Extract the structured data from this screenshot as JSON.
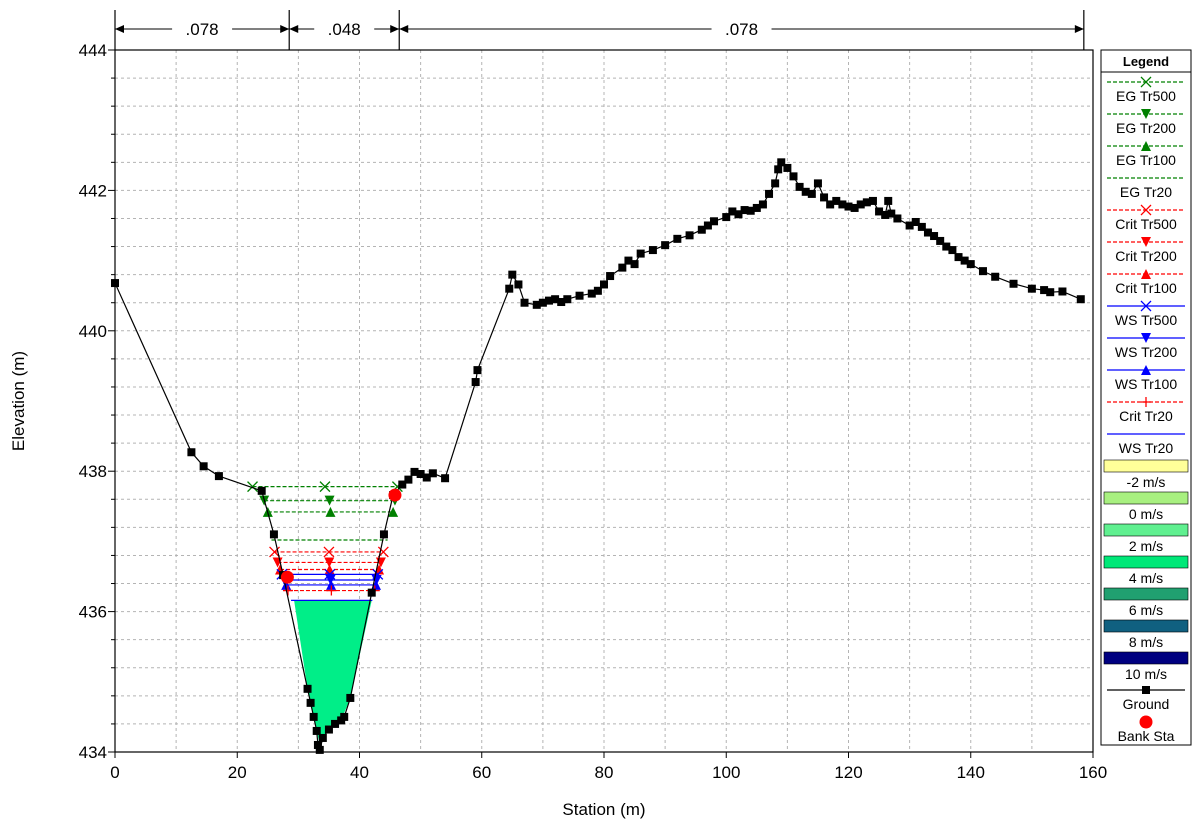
{
  "chart_data": {
    "type": "line",
    "xlabel": "Station (m)",
    "ylabel": "Elevation (m)",
    "xlim": [
      0,
      160
    ],
    "ylim": [
      434,
      444
    ],
    "xticks": [
      0,
      20,
      40,
      60,
      80,
      100,
      120,
      140,
      160
    ],
    "yticks": [
      434,
      436,
      438,
      440,
      442,
      444
    ],
    "grid": true,
    "legend_position": "right",
    "legend_title": "Legend",
    "manning_n": [
      {
        "label": ".078",
        "from": 0,
        "to": 28.5
      },
      {
        "label": ".048",
        "from": 28.5,
        "to": 46.5
      },
      {
        "label": ".078",
        "from": 46.5,
        "to": 158.5
      }
    ],
    "ground": {
      "name": "Ground",
      "color": "#000000",
      "points": [
        [
          0,
          440.68
        ],
        [
          12.5,
          438.27
        ],
        [
          14.5,
          438.07
        ],
        [
          17,
          437.93
        ],
        [
          24,
          437.72
        ],
        [
          26,
          437.1
        ],
        [
          27.5,
          436.52
        ],
        [
          31.5,
          434.9
        ],
        [
          32,
          434.7
        ],
        [
          32.5,
          434.5
        ],
        [
          33,
          434.3
        ],
        [
          33.2,
          434.1
        ],
        [
          33.5,
          434.03
        ],
        [
          34,
          434.2
        ],
        [
          35,
          434.32
        ],
        [
          36,
          434.4
        ],
        [
          37,
          434.45
        ],
        [
          37.5,
          434.5
        ],
        [
          38.5,
          434.77
        ],
        [
          42,
          436.27
        ],
        [
          44,
          437.1
        ],
        [
          45.5,
          437.66
        ],
        [
          47,
          437.81
        ],
        [
          48,
          437.88
        ],
        [
          49,
          437.99
        ],
        [
          50,
          437.96
        ],
        [
          51,
          437.91
        ],
        [
          52,
          437.97
        ],
        [
          54,
          437.9
        ],
        [
          59,
          439.27
        ],
        [
          59.3,
          439.44
        ],
        [
          64.5,
          440.6
        ],
        [
          65,
          440.8
        ],
        [
          66,
          440.66
        ],
        [
          67,
          440.4
        ],
        [
          69,
          440.37
        ],
        [
          70,
          440.4
        ],
        [
          71,
          440.43
        ],
        [
          72,
          440.45
        ],
        [
          73,
          440.41
        ],
        [
          74,
          440.45
        ],
        [
          76,
          440.5
        ],
        [
          78,
          440.53
        ],
        [
          79,
          440.57
        ],
        [
          80,
          440.66
        ],
        [
          81,
          440.78
        ],
        [
          83,
          440.9
        ],
        [
          84,
          441.0
        ],
        [
          85,
          440.95
        ],
        [
          86,
          441.1
        ],
        [
          88,
          441.15
        ],
        [
          90,
          441.22
        ],
        [
          92,
          441.31
        ],
        [
          94,
          441.36
        ],
        [
          96,
          441.44
        ],
        [
          97,
          441.5
        ],
        [
          98,
          441.56
        ],
        [
          100,
          441.62
        ],
        [
          101,
          441.7
        ],
        [
          102,
          441.66
        ],
        [
          103,
          441.72
        ],
        [
          104,
          441.71
        ],
        [
          105,
          441.75
        ],
        [
          106,
          441.8
        ],
        [
          107,
          441.95
        ],
        [
          108,
          442.1
        ],
        [
          108.5,
          442.3
        ],
        [
          109,
          442.4
        ],
        [
          110,
          442.32
        ],
        [
          111,
          442.2
        ],
        [
          112,
          442.05
        ],
        [
          113,
          441.98
        ],
        [
          114,
          441.95
        ],
        [
          115,
          442.1
        ],
        [
          116,
          441.9
        ],
        [
          117,
          441.8
        ],
        [
          118,
          441.85
        ],
        [
          119,
          441.8
        ],
        [
          120,
          441.77
        ],
        [
          121,
          441.75
        ],
        [
          122,
          441.8
        ],
        [
          123,
          441.83
        ],
        [
          124,
          441.85
        ],
        [
          125,
          441.7
        ],
        [
          126,
          441.65
        ],
        [
          126.5,
          441.85
        ],
        [
          127,
          441.67
        ],
        [
          128,
          441.6
        ],
        [
          130,
          441.5
        ],
        [
          131,
          441.55
        ],
        [
          132,
          441.48
        ],
        [
          133,
          441.4
        ],
        [
          134,
          441.35
        ],
        [
          135,
          441.28
        ],
        [
          136,
          441.2
        ],
        [
          137,
          441.15
        ],
        [
          138,
          441.05
        ],
        [
          139,
          441.0
        ],
        [
          140,
          440.95
        ],
        [
          142,
          440.85
        ],
        [
          144,
          440.77
        ],
        [
          147,
          440.67
        ],
        [
          150,
          440.6
        ],
        [
          152,
          440.58
        ],
        [
          153,
          440.55
        ],
        [
          155,
          440.56
        ],
        [
          158,
          440.45
        ]
      ]
    },
    "bank_stations": {
      "name": "Bank Sta",
      "color": "#ff0000",
      "points": [
        [
          28.2,
          436.49
        ],
        [
          45.8,
          437.66
        ]
      ]
    },
    "series": [
      {
        "name": "EG Tr500",
        "elevation": 437.78,
        "x": [
          22.5,
          46.2
        ],
        "marker": "x",
        "color": "#008000",
        "dashed": true
      },
      {
        "name": "EG Tr200",
        "elevation": 437.58,
        "x": [
          24.4,
          45.8
        ],
        "marker": "triangle-down",
        "color": "#008000",
        "dashed": true
      },
      {
        "name": "EG Tr100",
        "elevation": 437.42,
        "x": [
          25.0,
          45.5
        ],
        "marker": "triangle-up",
        "color": "#008000",
        "dashed": true
      },
      {
        "name": "EG Tr20",
        "elevation": 437.02,
        "x": [
          25.6,
          44.6
        ],
        "marker": "none",
        "color": "#008000",
        "dashed": true
      },
      {
        "name": "Crit Tr500",
        "elevation": 436.85,
        "x": [
          26.1,
          43.9
        ],
        "marker": "x",
        "color": "#ff0000",
        "dashed": true
      },
      {
        "name": "Crit Tr200",
        "elevation": 436.7,
        "x": [
          26.6,
          43.5
        ],
        "marker": "triangle-down",
        "color": "#ff0000",
        "dashed": true
      },
      {
        "name": "Crit Tr100",
        "elevation": 436.6,
        "x": [
          27.0,
          43.2
        ],
        "marker": "triangle-up",
        "color": "#ff0000",
        "dashed": true
      },
      {
        "name": "WS Tr500",
        "elevation": 436.53,
        "x": [
          27.3,
          43.0
        ],
        "marker": "x",
        "color": "#0000ff",
        "dashed": false
      },
      {
        "name": "WS Tr200",
        "elevation": 436.45,
        "x": [
          27.7,
          42.8
        ],
        "marker": "triangle-down",
        "color": "#0000ff",
        "dashed": false
      },
      {
        "name": "WS Tr100",
        "elevation": 436.38,
        "x": [
          28.0,
          42.7
        ],
        "marker": "triangle-up",
        "color": "#0000ff",
        "dashed": false
      },
      {
        "name": "Crit Tr20",
        "elevation": 436.3,
        "x": [
          28.3,
          42.5
        ],
        "marker": "plus",
        "color": "#ff0000",
        "dashed": true
      },
      {
        "name": "WS Tr20",
        "elevation": 436.16,
        "x": [
          28.8,
          42.1
        ],
        "marker": "none",
        "color": "#0000ff",
        "dashed": false
      }
    ],
    "velocity_legend": [
      {
        "label": "-2 m/s",
        "color": "#ffff99"
      },
      {
        "label": "0 m/s",
        "color": "#a8f080"
      },
      {
        "label": "2 m/s",
        "color": "#60f090"
      },
      {
        "label": "4 m/s",
        "color": "#00e878"
      },
      {
        "label": "6 m/s",
        "color": "#20a070"
      },
      {
        "label": "8 m/s",
        "color": "#106080"
      },
      {
        "label": "10 m/s",
        "color": "#000080"
      }
    ],
    "velocity_fill": {
      "color": "#00ee88",
      "water_surface": 436.16,
      "polygon": [
        [
          29.3,
          436.16
        ],
        [
          31.5,
          434.9
        ],
        [
          32,
          434.7
        ],
        [
          32.5,
          434.5
        ],
        [
          33,
          434.3
        ],
        [
          33.5,
          434.1
        ],
        [
          35,
          434.32
        ],
        [
          37,
          434.45
        ],
        [
          38.5,
          434.77
        ],
        [
          42,
          436.16
        ]
      ]
    }
  }
}
